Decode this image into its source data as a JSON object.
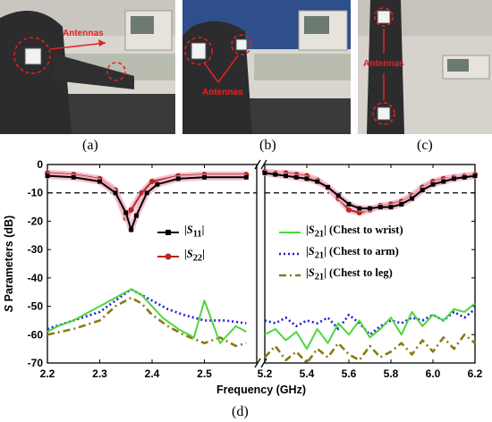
{
  "panels": {
    "a": {
      "label": "(a)",
      "annotation": "Antennas"
    },
    "b": {
      "label": "(b)",
      "annotation": "Antennas"
    },
    "c": {
      "label": "(c)",
      "annotation": "Antennas"
    },
    "d": {
      "label": "(d)"
    }
  },
  "colors": {
    "s11": "#000000",
    "s22": "#b5271f",
    "s21_wrist": "#4cd63a",
    "s21_arm": "#1f1fd8",
    "s21_leg": "#8a7a14",
    "highlight": "#f4b6c8",
    "threshold": "#000000"
  },
  "chart_data": {
    "type": "line",
    "ylabel": "S Parameters (dB)",
    "xlabel": "Frequency (GHz)",
    "ylim": [
      -70,
      0
    ],
    "yticks": [
      "0",
      "-10",
      "-20",
      "-30",
      "-40",
      "-50",
      "-60",
      "-70"
    ],
    "threshold_db": -10,
    "broken_x_axis": true,
    "segments": [
      {
        "xlim": [
          2.2,
          2.6
        ],
        "xticks": [
          "2.2",
          "2.3",
          "2.4",
          "2.5"
        ]
      },
      {
        "xlim": [
          5.2,
          6.2
        ],
        "xticks": [
          "5.2",
          "5.4",
          "5.6",
          "5.8",
          "6.0",
          "6.2"
        ]
      }
    ],
    "legend": [
      {
        "key": "s11",
        "html": "|<i>S</i><sub>11</sub>|"
      },
      {
        "key": "s22",
        "html": "|<i>S</i><sub>22</sub>|"
      },
      {
        "key": "s21_wrist",
        "html": "|<i>S</i><sub>21</sub>| (Chest to wrist)"
      },
      {
        "key": "s21_arm",
        "html": "|<i>S</i><sub>21</sub>| (Chest to arm)"
      },
      {
        "key": "s21_leg",
        "html": "|<i>S</i><sub>21</sub>| (Chest to leg)"
      }
    ],
    "series": [
      {
        "key": "s11",
        "style": "solid-square",
        "low": {
          "x": [
            2.2,
            2.25,
            2.3,
            2.33,
            2.35,
            2.36,
            2.37,
            2.39,
            2.41,
            2.45,
            2.5,
            2.58
          ],
          "y": [
            -4,
            -4.5,
            -6,
            -10,
            -17,
            -23,
            -18,
            -10,
            -7,
            -5,
            -4.5,
            -4.5
          ]
        },
        "high": {
          "x": [
            5.2,
            5.25,
            5.3,
            5.35,
            5.4,
            5.45,
            5.5,
            5.55,
            5.6,
            5.65,
            5.7,
            5.75,
            5.8,
            5.85,
            5.9,
            5.95,
            6.0,
            6.05,
            6.1,
            6.15,
            6.2
          ],
          "y": [
            -3,
            -3.5,
            -4,
            -4.5,
            -5,
            -6,
            -8,
            -11,
            -14,
            -15.5,
            -15.5,
            -15,
            -15,
            -14,
            -12,
            -9,
            -7,
            -6,
            -5,
            -4.5,
            -4
          ]
        }
      },
      {
        "key": "s22",
        "style": "solid-circle",
        "low": {
          "x": [
            2.2,
            2.25,
            2.3,
            2.33,
            2.35,
            2.36,
            2.38,
            2.4,
            2.45,
            2.5,
            2.58
          ],
          "y": [
            -3,
            -3.5,
            -5,
            -9,
            -19,
            -16,
            -10,
            -6,
            -4,
            -3.5,
            -3.5
          ]
        },
        "high": {
          "x": [
            5.2,
            5.25,
            5.3,
            5.35,
            5.4,
            5.45,
            5.5,
            5.55,
            5.6,
            5.65,
            5.7,
            5.75,
            5.8,
            5.85,
            5.9,
            5.95,
            6.0,
            6.05,
            6.1,
            6.15,
            6.2
          ],
          "y": [
            -2.5,
            -3,
            -3,
            -3.5,
            -4,
            -5.5,
            -8,
            -12,
            -16,
            -17,
            -16,
            -14.5,
            -14,
            -13,
            -11,
            -8,
            -6,
            -5,
            -4.5,
            -4,
            -3.5
          ]
        }
      },
      {
        "key": "s21_wrist",
        "style": "solid",
        "low": {
          "x": [
            2.2,
            2.22,
            2.25,
            2.28,
            2.3,
            2.33,
            2.36,
            2.38,
            2.4,
            2.42,
            2.45,
            2.48,
            2.5,
            2.53,
            2.56,
            2.58
          ],
          "y": [
            -59,
            -57,
            -55,
            -52,
            -50,
            -47,
            -44,
            -46,
            -50,
            -54,
            -58,
            -61,
            -48,
            -63,
            -57,
            -59
          ]
        },
        "high": {
          "x": [
            5.2,
            5.25,
            5.3,
            5.35,
            5.4,
            5.45,
            5.5,
            5.55,
            5.6,
            5.65,
            5.7,
            5.75,
            5.8,
            5.85,
            5.9,
            5.95,
            6.0,
            6.05,
            6.1,
            6.15,
            6.2
          ],
          "y": [
            -60,
            -58,
            -62,
            -59,
            -65,
            -58,
            -63,
            -56,
            -60,
            -55,
            -61,
            -58,
            -54,
            -60,
            -52,
            -57,
            -53,
            -55,
            -51,
            -52,
            -49
          ]
        }
      },
      {
        "key": "s21_arm",
        "style": "dotted",
        "low": {
          "x": [
            2.2,
            2.25,
            2.3,
            2.33,
            2.36,
            2.38,
            2.4,
            2.43,
            2.46,
            2.5,
            2.54,
            2.58
          ],
          "y": [
            -58,
            -55,
            -52,
            -48,
            -44,
            -46,
            -48,
            -51,
            -53,
            -55,
            -55,
            -56
          ]
        },
        "high": {
          "x": [
            5.2,
            5.25,
            5.3,
            5.35,
            5.4,
            5.45,
            5.5,
            5.55,
            5.6,
            5.65,
            5.7,
            5.75,
            5.8,
            5.85,
            5.9,
            5.95,
            6.0,
            6.05,
            6.1,
            6.15,
            6.2
          ],
          "y": [
            -55,
            -56,
            -54,
            -57,
            -55,
            -56,
            -54,
            -58,
            -53,
            -56,
            -60,
            -57,
            -55,
            -56,
            -54,
            -55,
            -53,
            -55,
            -52,
            -54,
            -51
          ]
        }
      },
      {
        "key": "s21_leg",
        "style": "dashdot",
        "low": {
          "x": [
            2.2,
            2.25,
            2.3,
            2.33,
            2.36,
            2.38,
            2.4,
            2.43,
            2.46,
            2.5,
            2.53,
            2.56,
            2.58
          ],
          "y": [
            -60,
            -58,
            -55,
            -50,
            -47,
            -49,
            -53,
            -57,
            -60,
            -63,
            -61,
            -64,
            -63
          ]
        },
        "high": {
          "x": [
            5.2,
            5.25,
            5.3,
            5.35,
            5.4,
            5.45,
            5.5,
            5.55,
            5.6,
            5.65,
            5.7,
            5.75,
            5.8,
            5.85,
            5.9,
            5.95,
            6.0,
            6.05,
            6.1,
            6.15,
            6.2
          ],
          "y": [
            -68,
            -64,
            -69,
            -66,
            -70,
            -65,
            -68,
            -63,
            -67,
            -69,
            -64,
            -68,
            -66,
            -63,
            -67,
            -62,
            -66,
            -61,
            -65,
            -60,
            -63
          ]
        }
      }
    ]
  }
}
